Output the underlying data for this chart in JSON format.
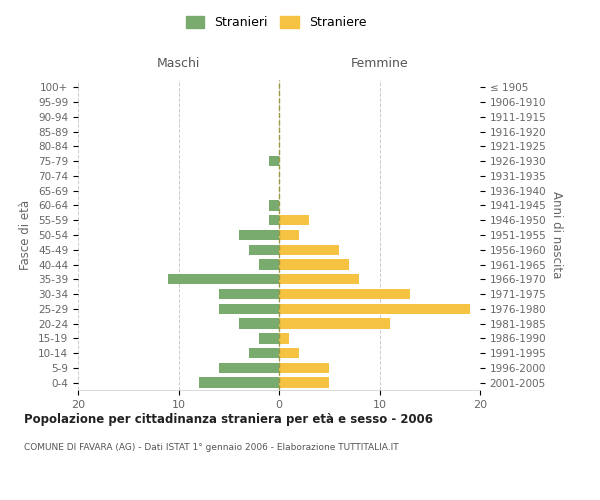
{
  "age_groups": [
    "0-4",
    "5-9",
    "10-14",
    "15-19",
    "20-24",
    "25-29",
    "30-34",
    "35-39",
    "40-44",
    "45-49",
    "50-54",
    "55-59",
    "60-64",
    "65-69",
    "70-74",
    "75-79",
    "80-84",
    "85-89",
    "90-94",
    "95-99",
    "100+"
  ],
  "birth_years": [
    "2001-2005",
    "1996-2000",
    "1991-1995",
    "1986-1990",
    "1981-1985",
    "1976-1980",
    "1971-1975",
    "1966-1970",
    "1961-1965",
    "1956-1960",
    "1951-1955",
    "1946-1950",
    "1941-1945",
    "1936-1940",
    "1931-1935",
    "1926-1930",
    "1921-1925",
    "1916-1920",
    "1911-1915",
    "1906-1910",
    "≤ 1905"
  ],
  "maschi": [
    8,
    6,
    3,
    2,
    4,
    6,
    6,
    11,
    2,
    3,
    4,
    1,
    1,
    0,
    0,
    1,
    0,
    0,
    0,
    0,
    0
  ],
  "femmine": [
    5,
    5,
    2,
    1,
    11,
    19,
    13,
    8,
    7,
    6,
    2,
    3,
    0,
    0,
    0,
    0,
    0,
    0,
    0,
    0,
    0
  ],
  "maschi_color": "#7aab6e",
  "femmine_color": "#f5c242",
  "background_color": "#ffffff",
  "grid_color": "#cccccc",
  "title": "Popolazione per cittadinanza straniera per età e sesso - 2006",
  "subtitle": "COMUNE DI FAVARA (AG) - Dati ISTAT 1° gennaio 2006 - Elaborazione TUTTITALIA.IT",
  "ylabel_left": "Fasce di età",
  "ylabel_right": "Anni di nascita",
  "xlabel_maschi": "Maschi",
  "xlabel_femmine": "Femmine",
  "legend_stranieri": "Stranieri",
  "legend_straniere": "Straniere",
  "xlim": 20,
  "bar_height": 0.7
}
